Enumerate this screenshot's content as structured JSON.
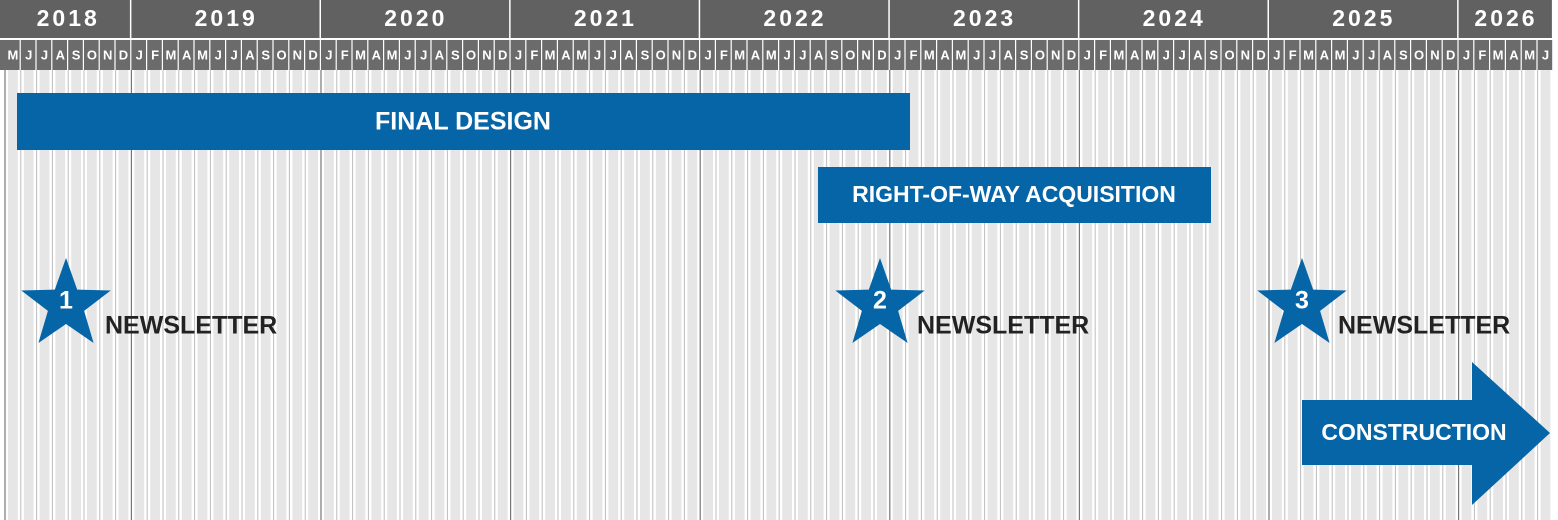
{
  "timeline": {
    "years": [
      {
        "label": "2018",
        "months": [
          "M",
          "J",
          "J",
          "A",
          "S",
          "O",
          "N",
          "D"
        ]
      },
      {
        "label": "2019",
        "months": [
          "J",
          "F",
          "M",
          "A",
          "M",
          "J",
          "J",
          "A",
          "S",
          "O",
          "N",
          "D"
        ]
      },
      {
        "label": "2020",
        "months": [
          "J",
          "F",
          "M",
          "A",
          "M",
          "J",
          "J",
          "A",
          "S",
          "O",
          "N",
          "D"
        ]
      },
      {
        "label": "2021",
        "months": [
          "J",
          "F",
          "M",
          "A",
          "M",
          "J",
          "J",
          "A",
          "S",
          "O",
          "N",
          "D"
        ]
      },
      {
        "label": "2022",
        "months": [
          "J",
          "F",
          "M",
          "A",
          "M",
          "J",
          "J",
          "A",
          "S",
          "O",
          "N",
          "D"
        ]
      },
      {
        "label": "2023",
        "months": [
          "J",
          "F",
          "M",
          "A",
          "M",
          "J",
          "J",
          "A",
          "S",
          "O",
          "N",
          "D"
        ]
      },
      {
        "label": "2024",
        "months": [
          "J",
          "F",
          "M",
          "A",
          "M",
          "J",
          "J",
          "A",
          "S",
          "O",
          "N",
          "D"
        ]
      },
      {
        "label": "2025",
        "months": [
          "J",
          "F",
          "M",
          "A",
          "M",
          "J",
          "J",
          "A",
          "S",
          "O",
          "N",
          "D"
        ]
      },
      {
        "label": "2026",
        "months": [
          "J",
          "F",
          "M",
          "A",
          "M",
          "J"
        ]
      }
    ],
    "tasks": [
      "FINAL DESIGN",
      "RIGHT-OF-WAY ACQUISITION",
      "CONSTRUCTION"
    ],
    "milestones": [
      {
        "number": "1",
        "label": "NEWSLETTER"
      },
      {
        "number": "2",
        "label": "NEWSLETTER"
      },
      {
        "number": "3",
        "label": "NEWSLETTER"
      }
    ]
  }
}
